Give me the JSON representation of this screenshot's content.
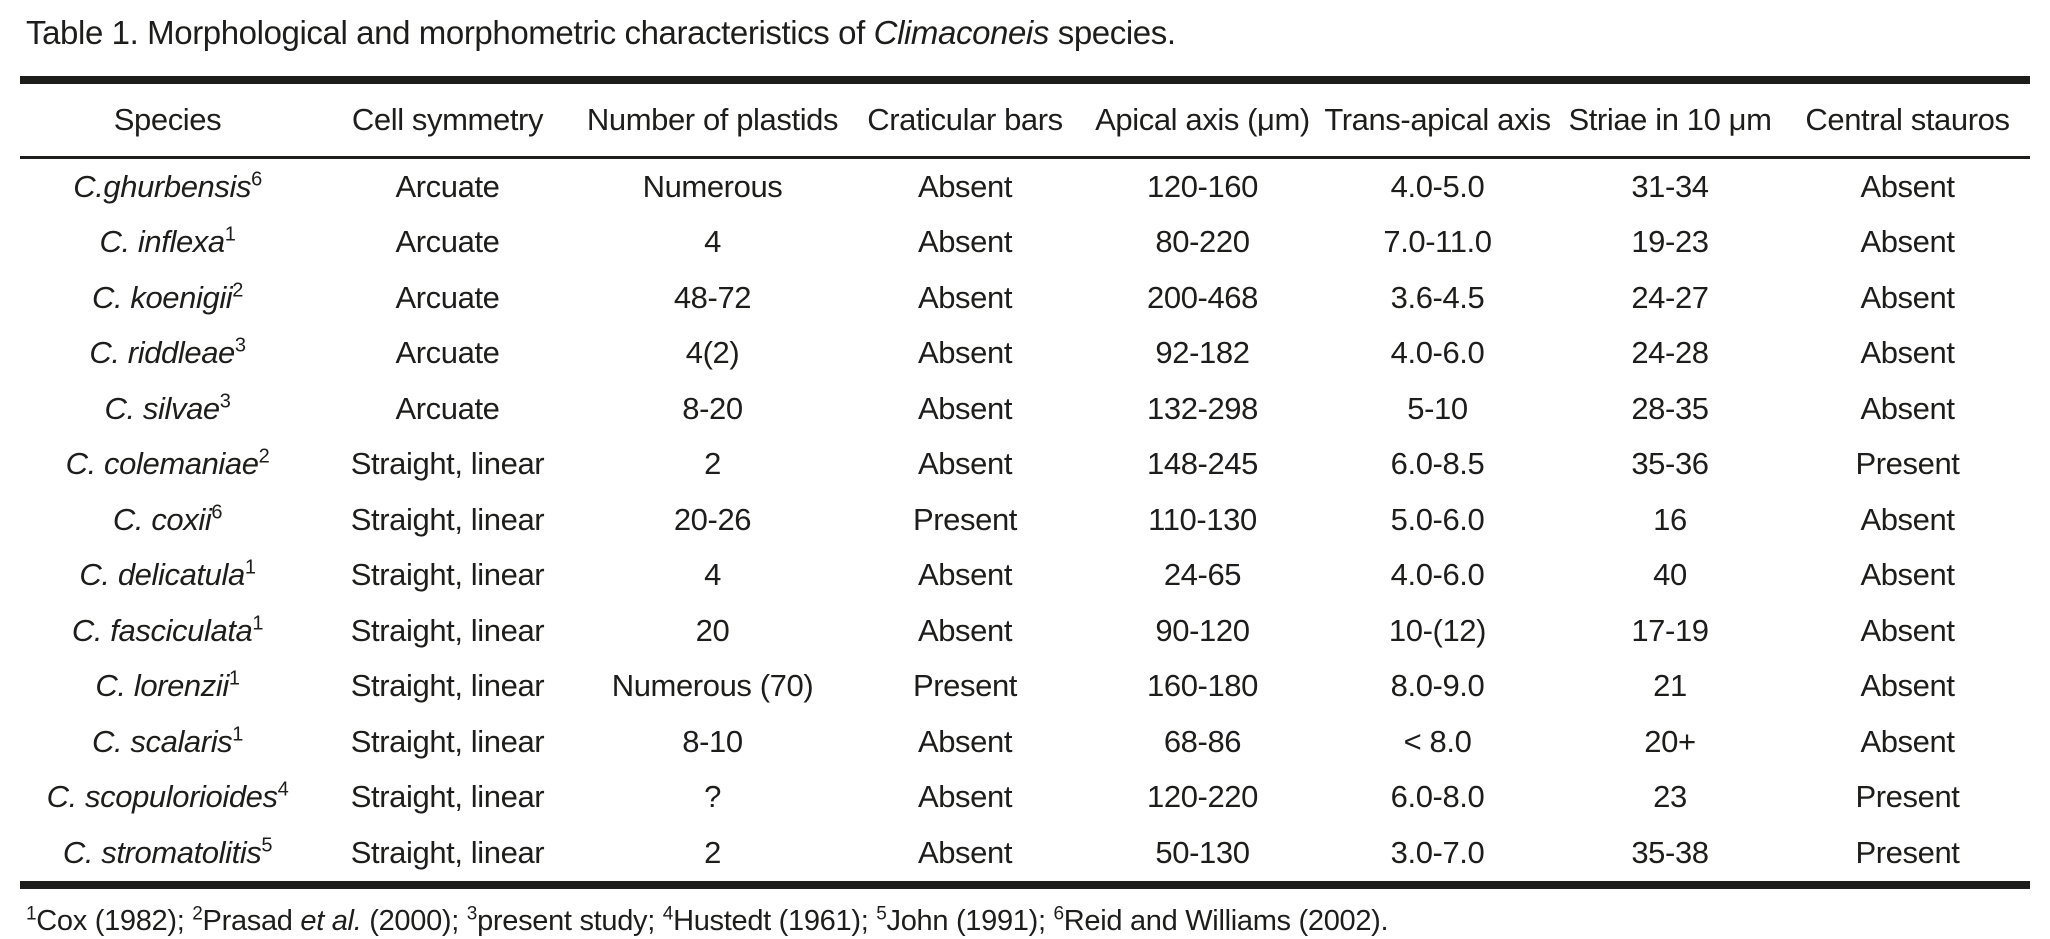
{
  "page": {
    "title_prefix": "Table 1. Morphological and morphometric characteristics of ",
    "title_genus": "Climaconeis",
    "title_suffix": " species."
  },
  "colors": {
    "text": "#1d1d1b",
    "background": "#ffffff",
    "rule": "#1d1d1b"
  },
  "chart_data": {
    "type": "table",
    "title": "Table 1. Morphological and morphometric characteristics of Climaconeis species.",
    "columns": [
      "Species",
      "Cell symmetry",
      "Number of plastids",
      "Craticular bars",
      "Apical axis (μm)",
      "Trans-apical axis",
      "Striae in 10 μm",
      "Central stauros"
    ]
  },
  "table": {
    "columns": [
      "Species",
      "Cell symmetry",
      "Number of plastids",
      "Craticular bars",
      "Apical axis (μm)",
      "Trans-apical axis",
      "Striae in 10 μm",
      "Central stauros"
    ],
    "rows": [
      {
        "species": "C.ghurbensis",
        "ref": "6",
        "cell_symmetry": "Arcuate",
        "plastids": "Numerous",
        "craticular_bars": "Absent",
        "apical_axis": "120-160",
        "trans_apical_axis": "4.0-5.0",
        "striae": "31-34",
        "central_stauros": "Absent"
      },
      {
        "species": "C. inflexa",
        "ref": "1",
        "cell_symmetry": "Arcuate",
        "plastids": "4",
        "craticular_bars": "Absent",
        "apical_axis": "80-220",
        "trans_apical_axis": "7.0-11.0",
        "striae": "19-23",
        "central_stauros": "Absent"
      },
      {
        "species": "C. koenigii",
        "ref": "2",
        "cell_symmetry": "Arcuate",
        "plastids": "48-72",
        "craticular_bars": "Absent",
        "apical_axis": "200-468",
        "trans_apical_axis": "3.6-4.5",
        "striae": "24-27",
        "central_stauros": "Absent"
      },
      {
        "species": "C. riddleae",
        "ref": "3",
        "cell_symmetry": "Arcuate",
        "plastids": "4(2)",
        "craticular_bars": "Absent",
        "apical_axis": "92-182",
        "trans_apical_axis": "4.0-6.0",
        "striae": "24-28",
        "central_stauros": "Absent"
      },
      {
        "species": "C. silvae",
        "ref": "3",
        "cell_symmetry": "Arcuate",
        "plastids": "8-20",
        "craticular_bars": "Absent",
        "apical_axis": "132-298",
        "trans_apical_axis": "5-10",
        "striae": "28-35",
        "central_stauros": "Absent"
      },
      {
        "species": "C. colemaniae",
        "ref": "2",
        "cell_symmetry": "Straight, linear",
        "plastids": "2",
        "craticular_bars": "Absent",
        "apical_axis": "148-245",
        "trans_apical_axis": "6.0-8.5",
        "striae": "35-36",
        "central_stauros": "Present"
      },
      {
        "species": "C. coxii",
        "ref": "6",
        "cell_symmetry": "Straight, linear",
        "plastids": "20-26",
        "craticular_bars": "Present",
        "apical_axis": "110-130",
        "trans_apical_axis": "5.0-6.0",
        "striae": "16",
        "central_stauros": "Absent"
      },
      {
        "species": "C. delicatula",
        "ref": "1",
        "cell_symmetry": "Straight, linear",
        "plastids": "4",
        "craticular_bars": "Absent",
        "apical_axis": "24-65",
        "trans_apical_axis": "4.0-6.0",
        "striae": "40",
        "central_stauros": "Absent"
      },
      {
        "species": "C. fasciculata",
        "ref": "1",
        "cell_symmetry": "Straight, linear",
        "plastids": "20",
        "craticular_bars": "Absent",
        "apical_axis": "90-120",
        "trans_apical_axis": "10-(12)",
        "striae": "17-19",
        "central_stauros": "Absent"
      },
      {
        "species": "C. lorenzii",
        "ref": "1",
        "cell_symmetry": "Straight, linear",
        "plastids": "Numerous (70)",
        "craticular_bars": "Present",
        "apical_axis": "160-180",
        "trans_apical_axis": "8.0-9.0",
        "striae": "21",
        "central_stauros": "Absent"
      },
      {
        "species": "C. scalaris",
        "ref": "1",
        "cell_symmetry": "Straight, linear",
        "plastids": "8-10",
        "craticular_bars": "Absent",
        "apical_axis": "68-86",
        "trans_apical_axis": "< 8.0",
        "striae": "20+",
        "central_stauros": "Absent"
      },
      {
        "species": "C. scopulorioides",
        "ref": "4",
        "cell_symmetry": "Straight, linear",
        "plastids": "?",
        "craticular_bars": "Absent",
        "apical_axis": "120-220",
        "trans_apical_axis": "6.0-8.0",
        "striae": "23",
        "central_stauros": "Present"
      },
      {
        "species": "C. stromatolitis",
        "ref": "5",
        "cell_symmetry": "Straight, linear",
        "plastids": "2",
        "craticular_bars": "Absent",
        "apical_axis": "50-130",
        "trans_apical_axis": "3.0-7.0",
        "striae": "35-38",
        "central_stauros": "Present"
      }
    ]
  },
  "footnotes": [
    {
      "sup": "1",
      "parts": [
        {
          "t": "Cox (1982); "
        }
      ]
    },
    {
      "sup": "2",
      "parts": [
        {
          "t": "Prasad "
        },
        {
          "t": "et al.",
          "i": true
        },
        {
          "t": " (2000); "
        }
      ]
    },
    {
      "sup": "3",
      "parts": [
        {
          "t": "present study; "
        }
      ]
    },
    {
      "sup": "4",
      "parts": [
        {
          "t": "Hustedt (1961); "
        }
      ]
    },
    {
      "sup": "5",
      "parts": [
        {
          "t": "John (1991); "
        }
      ]
    },
    {
      "sup": "6",
      "parts": [
        {
          "t": "Reid and Williams (2002)."
        }
      ]
    }
  ]
}
